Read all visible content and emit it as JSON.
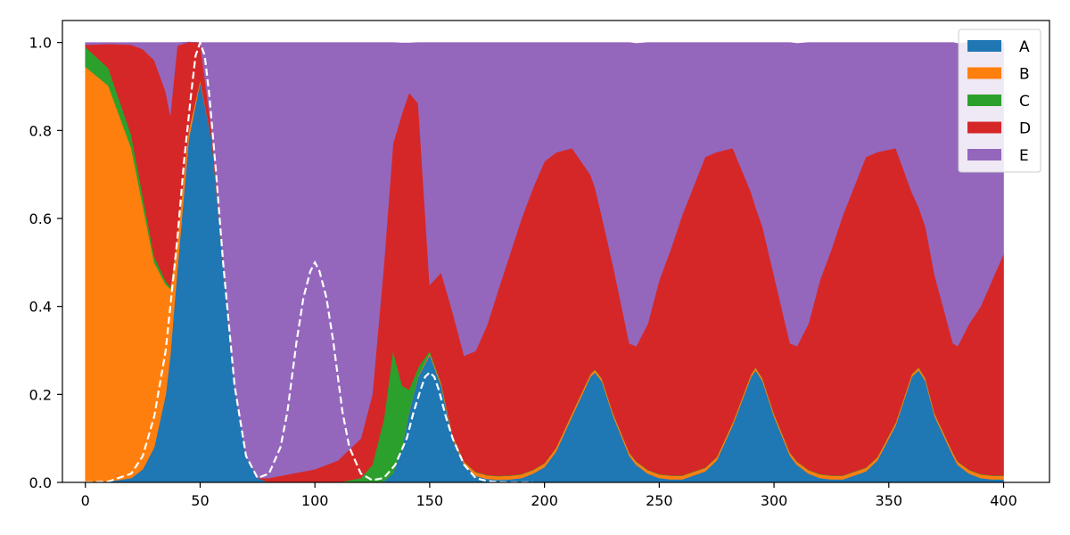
{
  "chart_data": {
    "type": "area",
    "stacked": true,
    "title": "",
    "xlabel": "",
    "ylabel": "",
    "xlim": [
      -10,
      420
    ],
    "ylim": [
      0,
      1.05
    ],
    "xticks": [
      0,
      50,
      100,
      150,
      200,
      250,
      300,
      350,
      400
    ],
    "xtick_labels": [
      "0",
      "50",
      "100",
      "150",
      "200",
      "250",
      "300",
      "350",
      "400"
    ],
    "yticks": [
      0,
      0.2,
      0.4,
      0.6,
      0.8,
      1.0
    ],
    "ytick_labels": [
      "0.0",
      "0.2",
      "0.4",
      "0.6",
      "0.8",
      "1.0"
    ],
    "grid": false,
    "legend": {
      "position": "top-right"
    },
    "x": [
      0,
      10,
      20,
      25,
      30,
      35,
      37,
      40,
      45,
      50,
      55,
      60,
      65,
      70,
      75,
      80,
      90,
      100,
      110,
      120,
      125,
      130,
      134,
      138,
      141,
      145,
      150,
      155,
      160,
      165,
      170,
      175,
      180,
      185,
      190,
      195,
      200,
      205,
      212,
      220,
      222,
      225,
      230,
      237,
      240,
      245,
      250,
      255,
      260,
      270,
      275,
      282,
      290,
      292,
      295,
      300,
      307,
      310,
      315,
      320,
      325,
      330,
      340,
      345,
      353,
      360,
      363,
      366,
      370,
      378,
      380,
      385,
      390,
      395,
      400
    ],
    "series": [
      {
        "name": "A",
        "color": "#1f77b4",
        "values": [
          0,
          0.002,
          0.01,
          0.03,
          0.08,
          0.2,
          0.29,
          0.48,
          0.78,
          0.91,
          0.78,
          0.5,
          0.22,
          0.06,
          0.01,
          0,
          0,
          0,
          0,
          0,
          0,
          0.003,
          0.02,
          0.08,
          0.16,
          0.24,
          0.29,
          0.22,
          0.1,
          0.04,
          0.015,
          0.008,
          0.006,
          0.007,
          0.01,
          0.02,
          0.035,
          0.07,
          0.15,
          0.24,
          0.25,
          0.23,
          0.15,
          0.06,
          0.04,
          0.02,
          0.01,
          0.007,
          0.007,
          0.025,
          0.05,
          0.13,
          0.24,
          0.255,
          0.23,
          0.15,
          0.06,
          0.04,
          0.02,
          0.01,
          0.007,
          0.007,
          0.025,
          0.05,
          0.13,
          0.24,
          0.255,
          0.23,
          0.15,
          0.06,
          0.04,
          0.02,
          0.01,
          0.007,
          0.007
        ]
      },
      {
        "name": "B",
        "color": "#ff7f0e",
        "values": [
          0.945,
          0.9,
          0.75,
          0.6,
          0.42,
          0.25,
          0.15,
          0.07,
          0.02,
          0.005,
          0.001,
          0,
          0,
          0,
          0,
          0,
          0,
          0,
          0,
          0,
          0,
          0,
          0,
          0,
          0.001,
          0.002,
          0.004,
          0.005,
          0.006,
          0.007,
          0.008,
          0.008,
          0.008,
          0.008,
          0.008,
          0.008,
          0.008,
          0.008,
          0.007,
          0.006,
          0.006,
          0.006,
          0.006,
          0.007,
          0.007,
          0.008,
          0.008,
          0.008,
          0.008,
          0.008,
          0.007,
          0.006,
          0.006,
          0.006,
          0.006,
          0.006,
          0.007,
          0.007,
          0.008,
          0.008,
          0.008,
          0.008,
          0.008,
          0.007,
          0.006,
          0.006,
          0.006,
          0.006,
          0.006,
          0.007,
          0.007,
          0.008,
          0.008,
          0.008,
          0.008
        ]
      },
      {
        "name": "C",
        "color": "#2ca02c",
        "values": [
          0.045,
          0.04,
          0.03,
          0.022,
          0.014,
          0.008,
          0.005,
          0.003,
          0.001,
          0,
          0,
          0,
          0,
          0,
          0,
          0,
          0,
          0,
          0,
          0.01,
          0.04,
          0.14,
          0.28,
          0.14,
          0.05,
          0.02,
          0.005,
          0.002,
          0.001,
          0.001,
          0.001,
          0.001,
          0.001,
          0.001,
          0.001,
          0.001,
          0.001,
          0.001,
          0.001,
          0.001,
          0.001,
          0.001,
          0.001,
          0.001,
          0.001,
          0.001,
          0.001,
          0.001,
          0.001,
          0.001,
          0.001,
          0.001,
          0.001,
          0.001,
          0.001,
          0.001,
          0.001,
          0.001,
          0.001,
          0.001,
          0.001,
          0.001,
          0.001,
          0.001,
          0.001,
          0.001,
          0.001,
          0.001,
          0.001,
          0.001,
          0.001,
          0.001,
          0.001,
          0.001,
          0.001
        ]
      },
      {
        "name": "D",
        "color": "#d62728",
        "values": [
          0.005,
          0.055,
          0.205,
          0.333,
          0.446,
          0.43,
          0.39,
          0.44,
          0.2,
          0.085,
          0.02,
          0.005,
          0.001,
          0,
          0,
          0.01,
          0.02,
          0.03,
          0.05,
          0.09,
          0.16,
          0.35,
          0.47,
          0.62,
          0.675,
          0.6,
          0.15,
          0.25,
          0.28,
          0.24,
          0.275,
          0.341,
          0.425,
          0.504,
          0.581,
          0.641,
          0.686,
          0.671,
          0.602,
          0.453,
          0.414,
          0.368,
          0.334,
          0.248,
          0.262,
          0.332,
          0.441,
          0.514,
          0.592,
          0.706,
          0.693,
          0.623,
          0.413,
          0.364,
          0.344,
          0.314,
          0.248,
          0.262,
          0.332,
          0.441,
          0.514,
          0.592,
          0.706,
          0.693,
          0.623,
          0.413,
          0.364,
          0.344,
          0.314,
          0.248,
          0.262,
          0.332,
          0.381,
          0.444,
          0.504
        ]
      },
      {
        "name": "E",
        "color": "#9467bd",
        "values": [
          0.005,
          0.003,
          0.005,
          0.015,
          0.04,
          0.112,
          0.165,
          0.007,
          0,
          0,
          0.199,
          0.495,
          0.779,
          0.94,
          0.99,
          0.99,
          0.98,
          0.97,
          0.95,
          0.9,
          0.8,
          0.507,
          0.23,
          0.159,
          0.113,
          0.138,
          0.551,
          0.523,
          0.613,
          0.712,
          0.701,
          0.642,
          0.56,
          0.48,
          0.4,
          0.33,
          0.27,
          0.25,
          0.24,
          0.3,
          0.329,
          0.395,
          0.509,
          0.684,
          0.688,
          0.639,
          0.54,
          0.47,
          0.392,
          0.26,
          0.249,
          0.24,
          0.34,
          0.374,
          0.419,
          0.529,
          0.684,
          0.688,
          0.639,
          0.54,
          0.47,
          0.392,
          0.26,
          0.249,
          0.24,
          0.34,
          0.374,
          0.419,
          0.529,
          0.684,
          0.688,
          0.639,
          0.6,
          0.54,
          0.48
        ]
      }
    ],
    "overlay": {
      "name": "",
      "style": "dashed",
      "color": "#ffffff",
      "x": [
        0,
        10,
        20,
        25,
        30,
        35,
        40,
        43,
        46,
        48,
        50,
        52,
        54,
        57,
        60,
        65,
        70,
        75,
        80,
        85,
        88,
        92,
        95,
        98,
        100,
        102,
        105,
        108,
        112,
        115,
        120,
        125,
        130,
        135,
        140,
        143,
        146,
        148,
        150,
        152,
        154,
        157,
        160,
        165,
        170,
        175,
        180,
        185,
        190,
        195
      ],
      "y": [
        0,
        0.002,
        0.02,
        0.06,
        0.15,
        0.3,
        0.55,
        0.73,
        0.88,
        0.97,
        1.0,
        0.97,
        0.88,
        0.7,
        0.5,
        0.22,
        0.06,
        0.01,
        0.02,
        0.08,
        0.16,
        0.32,
        0.42,
        0.48,
        0.5,
        0.48,
        0.42,
        0.32,
        0.16,
        0.08,
        0.02,
        0.005,
        0.01,
        0.04,
        0.1,
        0.16,
        0.21,
        0.24,
        0.25,
        0.24,
        0.21,
        0.15,
        0.1,
        0.04,
        0.01,
        0.003,
        0.001,
        0,
        0,
        0
      ]
    }
  }
}
